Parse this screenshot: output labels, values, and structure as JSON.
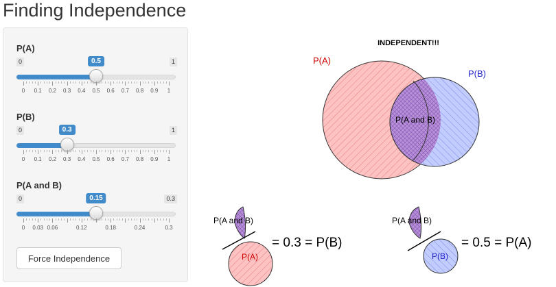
{
  "app": {
    "title": "Finding Independence"
  },
  "sliders": [
    {
      "id": "pa",
      "label": "P(A)",
      "min": 0,
      "max": 1,
      "value": 0.5,
      "min_label": "0",
      "max_label": "1",
      "value_label": "0.5",
      "ticks": [
        "0",
        "0.1",
        "0.2",
        "0.3",
        "0.4",
        "0.5",
        "0.6",
        "0.7",
        "0.8",
        "0.9",
        "1"
      ]
    },
    {
      "id": "pb",
      "label": "P(B)",
      "min": 0,
      "max": 1,
      "value": 0.3,
      "min_label": "0",
      "max_label": "1",
      "value_label": "0.3",
      "ticks": [
        "0",
        "0.1",
        "0.2",
        "0.3",
        "0.4",
        "0.5",
        "0.6",
        "0.7",
        "0.8",
        "0.9",
        "1"
      ]
    },
    {
      "id": "pab",
      "label": "P(A and B)",
      "min": 0,
      "max": 0.3,
      "value": 0.15,
      "min_label": "0",
      "max_label": "0.3",
      "value_label": "0.15",
      "ticks": [
        "0",
        "0.03",
        "0.06",
        "",
        "0.12",
        "",
        "0.18",
        "",
        "0.24",
        "",
        "0.3"
      ]
    }
  ],
  "button": {
    "label": "Force Independence"
  },
  "plot": {
    "status": "INDEPENDENT!!!",
    "label_a": "P(A)",
    "label_b": "P(B)",
    "label_ab": "P(A and B)",
    "eq1_num": "P(A and B)",
    "eq1_den": "P(A)",
    "eq1_rhs": "= 0.3 = P(B)",
    "eq2_num": "P(A and B)",
    "eq2_den": "P(B)",
    "eq2_rhs": "= 0.5 = P(A)",
    "colors": {
      "a": "#cc0000",
      "b": "#2222cc",
      "a_fill": "#ffb3b3",
      "b_fill": "#b3c0ff",
      "ab_fill": "#b48cd8"
    }
  }
}
